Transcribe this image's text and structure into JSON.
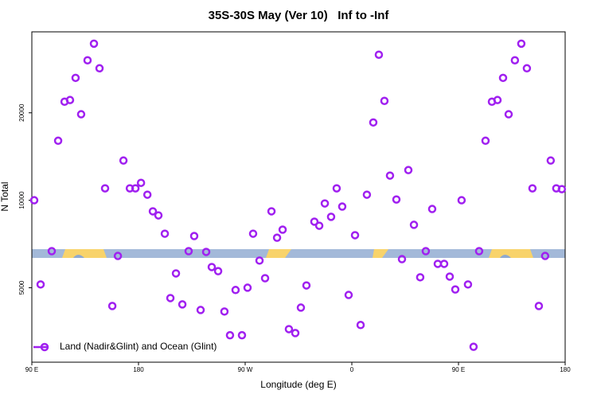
{
  "chart_data": {
    "type": "scatter",
    "title": "35S-30S May (Ver 10)   Inf to -Inf",
    "x_label": "Longitude (deg E)",
    "y_label": "N Total",
    "x": [
      92.0,
      97.4,
      106.8,
      112.2,
      117.6,
      122.2,
      126.9,
      131.6,
      137.0,
      142.4,
      147.1,
      151.8,
      157.9,
      162.6,
      167.3,
      172.7,
      177.4,
      182.1,
      187.5,
      192.1,
      196.8,
      202.2,
      206.9,
      211.6,
      217.0,
      222.3,
      227.0,
      232.4,
      237.1,
      241.8,
      247.2,
      252.5,
      257.2,
      261.9,
      267.3,
      272.0,
      276.7,
      282.1,
      286.8,
      292.2,
      296.9,
      301.6,
      306.9,
      312.3,
      317.0,
      321.7,
      328.4,
      332.5,
      337.2,
      342.5,
      347.2,
      351.9,
      357.3,
      362.7,
      367.4,
      372.7,
      378.1,
      382.8,
      387.5,
      392.2,
      397.6,
      402.3,
      407.7,
      412.4,
      417.7,
      422.4,
      427.8,
      432.5,
      437.9,
      442.6,
      447.3,
      452.6,
      458.0,
      462.7,
      467.4,
      472.8,
      478.2,
      482.9,
      487.6,
      492.3,
      497.6,
      503.0,
      507.7,
      512.4,
      517.8,
      523.1,
      527.8,
      532.5,
      537.2
    ],
    "series": [
      {
        "name": "Land (Nadir&Glint) and Ocean (Glint)",
        "color": "#a020f0",
        "values": [
          10000,
          5130,
          6680,
          16030,
          21840,
          22130,
          26380,
          19770,
          30330,
          34600,
          28460,
          10990,
          4325,
          6430,
          13700,
          10990,
          10990,
          11480,
          10450,
          9160,
          8870,
          7670,
          4605,
          5600,
          4380,
          6680,
          7530,
          4190,
          6640,
          5890,
          5700,
          4140,
          3430,
          4910,
          3430,
          5000,
          7670,
          6200,
          5390,
          9160,
          7430,
          7920,
          3600,
          3490,
          4270,
          5090,
          8440,
          8170,
          9750,
          8770,
          10990,
          9510,
          4720,
          7580,
          3720,
          10450,
          18530,
          31700,
          21980,
          12160,
          10060,
          6270,
          12700,
          8230,
          5430,
          6680,
          9330,
          6040,
          6040,
          5460,
          4930,
          10000,
          5130,
          3130,
          6680,
          16030,
          21840,
          22130,
          26380,
          19770,
          30330,
          34600,
          28460,
          10990,
          4325,
          6430,
          13700,
          10990,
          10920
        ]
      }
    ],
    "xlim": [
      90,
      540
    ],
    "xticks": [
      {
        "value": 90,
        "label": "90 E"
      },
      180,
      {
        "value": 270,
        "label": "90 W"
      },
      {
        "value": 360,
        "label": "0"
      },
      {
        "value": 450,
        "label": "90 E"
      },
      {
        "value": 540,
        "label": "180"
      }
    ],
    "ylim": [
      2770,
      38000
    ],
    "yticks": [
      5000,
      10000,
      20000
    ],
    "ylog": true,
    "grid": false,
    "legend": "bottomleft"
  }
}
